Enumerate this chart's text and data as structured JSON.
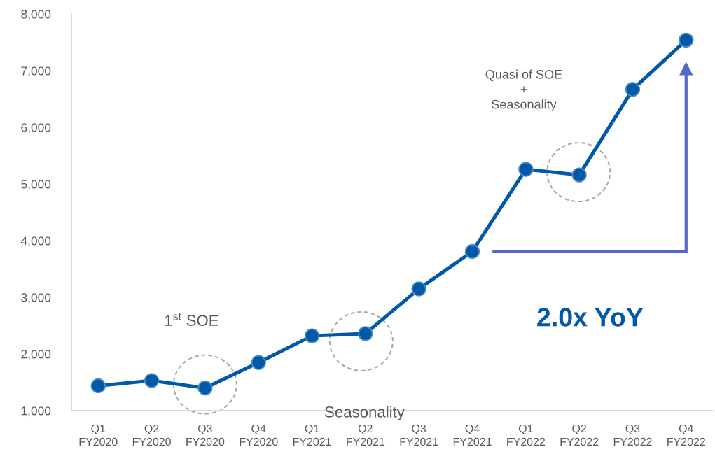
{
  "chart_data": {
    "type": "line",
    "categories": [
      "Q1\nFY2020",
      "Q2\nFY2020",
      "Q3\nFY2020",
      "Q4\nFY2020",
      "Q1\nFY2021",
      "Q2\nFY2021",
      "Q3\nFY2021",
      "Q4\nFY2021",
      "Q1\nFY2022",
      "Q2\nFY2022",
      "Q3\nFY2022",
      "Q4\nFY2022"
    ],
    "series": [
      {
        "color": "#0058a8",
        "values": [
          1440,
          1530,
          1400,
          1850,
          2320,
          2360,
          3150,
          3810,
          5260,
          5160,
          6670,
          7540
        ]
      }
    ],
    "ylim": [
      1000,
      8000
    ],
    "yticks": [
      {
        "value": 1000,
        "label": "1,000"
      },
      {
        "value": 2000,
        "label": "2,000"
      },
      {
        "value": 3000,
        "label": "3,000"
      },
      {
        "value": 4000,
        "label": "4,000"
      },
      {
        "value": 5000,
        "label": "5,000"
      },
      {
        "value": 6000,
        "label": "6,000"
      },
      {
        "value": 7000,
        "label": "7,000"
      },
      {
        "value": 8000,
        "label": "8,000"
      }
    ],
    "grid": false,
    "marker": "circle",
    "line_style": "solid",
    "annotations": [
      "1$^{st}$ SOE",
      "Seasonality",
      "Quasi of SOE\n+\nSeasonality",
      "2.0x YoY"
    ]
  }
}
